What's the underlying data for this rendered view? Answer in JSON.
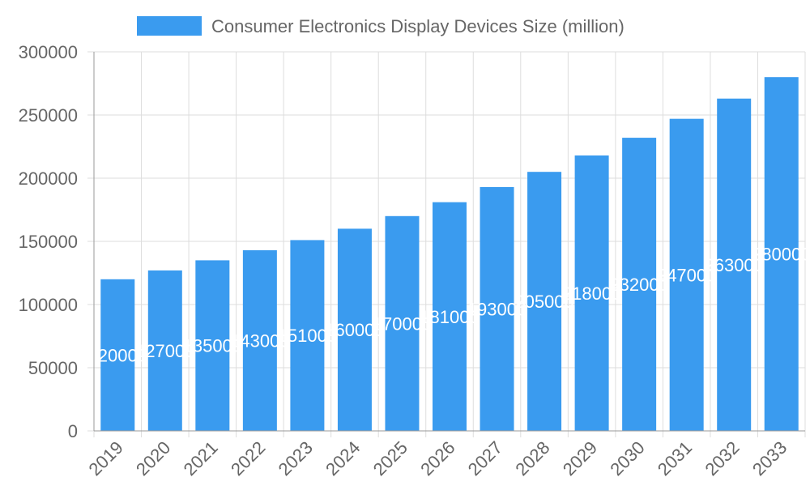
{
  "chart_data": {
    "type": "bar",
    "title": "",
    "xlabel": "",
    "ylabel": "",
    "categories": [
      "2019",
      "2020",
      "2021",
      "2022",
      "2023",
      "2024",
      "2025",
      "2026",
      "2027",
      "2028",
      "2029",
      "2030",
      "2031",
      "2032",
      "2033"
    ],
    "series": [
      {
        "name": "Consumer Electronics Display Devices Size (million)",
        "values": [
          120000,
          127000,
          135000,
          143000,
          151000,
          160000,
          170000,
          181000,
          193000,
          205000,
          218000,
          232000,
          247000,
          263000,
          280000
        ],
        "color": "#3a9bef"
      }
    ],
    "ylim": [
      0,
      300000
    ],
    "yticks": [
      0,
      50000,
      100000,
      150000,
      200000,
      250000,
      300000
    ],
    "grid": true,
    "legend_position": "top",
    "data_labels": true,
    "colors": {
      "bar": "#3a9bef",
      "grid": "#dddddd",
      "axis": "#999999",
      "text": "#666666",
      "label": "#ffffff"
    }
  }
}
